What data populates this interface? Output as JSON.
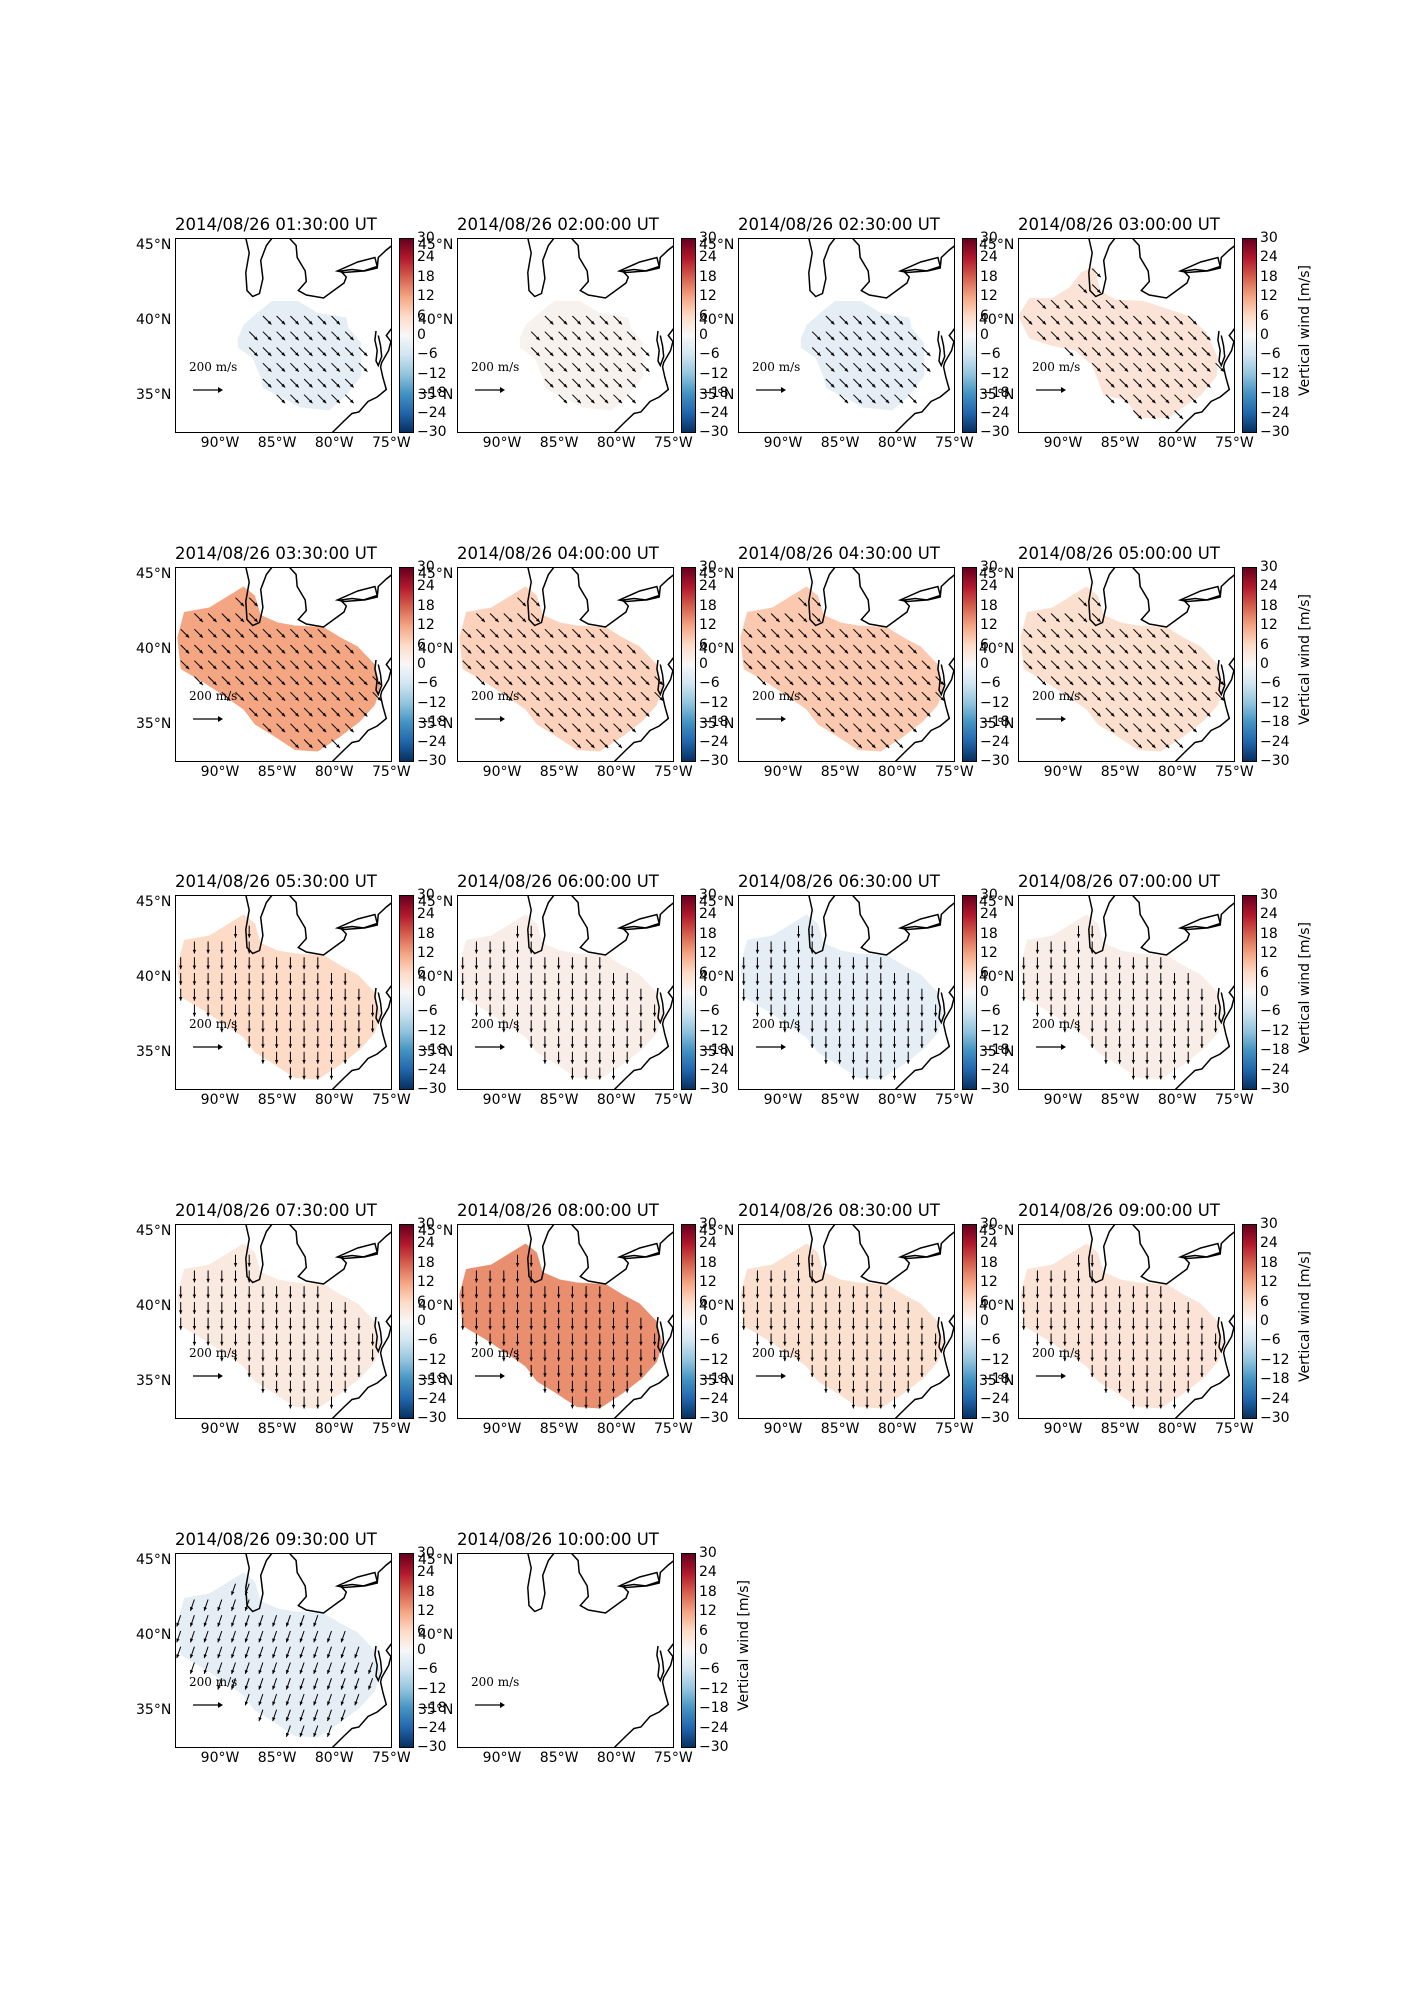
{
  "colorbar": {
    "ticks": [
      "30",
      "24",
      "18",
      "12",
      "6",
      "0",
      "−6",
      "−12",
      "−18",
      "−24",
      "−30"
    ],
    "label": "Vertical wind [m/s]",
    "range": [
      -30,
      30
    ]
  },
  "axes": {
    "lat_labels": [
      "45°N",
      "40°N",
      "35°N"
    ],
    "lon_labels": [
      "90°W",
      "85°W",
      "80°W",
      "75°W"
    ]
  },
  "scale_key": {
    "text": "200 m/s"
  },
  "panels": [
    {
      "title": "2014/08/26 01:30:00 UT",
      "value": -3,
      "wind_dir": "se",
      "region": "small",
      "show_label": false
    },
    {
      "title": "2014/08/26 02:00:00 UT",
      "value": 1,
      "wind_dir": "se",
      "region": "small",
      "show_label": false
    },
    {
      "title": "2014/08/26 02:30:00 UT",
      "value": -3,
      "wind_dir": "se",
      "region": "small",
      "show_label": false
    },
    {
      "title": "2014/08/26 03:00:00 UT",
      "value": 4,
      "wind_dir": "se",
      "region": "medium",
      "show_label": true
    },
    {
      "title": "2014/08/26 03:30:00 UT",
      "value": 12,
      "wind_dir": "se",
      "region": "large",
      "show_label": false
    },
    {
      "title": "2014/08/26 04:00:00 UT",
      "value": 7,
      "wind_dir": "se",
      "region": "large",
      "show_label": false
    },
    {
      "title": "2014/08/26 04:30:00 UT",
      "value": 8,
      "wind_dir": "se",
      "region": "large",
      "show_label": false
    },
    {
      "title": "2014/08/26 05:00:00 UT",
      "value": 5,
      "wind_dir": "se",
      "region": "large",
      "show_label": true
    },
    {
      "title": "2014/08/26 05:30:00 UT",
      "value": 6,
      "wind_dir": "s",
      "region": "large",
      "show_label": false
    },
    {
      "title": "2014/08/26 06:00:00 UT",
      "value": 2,
      "wind_dir": "s",
      "region": "large",
      "show_label": false
    },
    {
      "title": "2014/08/26 06:30:00 UT",
      "value": -3,
      "wind_dir": "s",
      "region": "large",
      "show_label": false
    },
    {
      "title": "2014/08/26 07:00:00 UT",
      "value": 2,
      "wind_dir": "s",
      "region": "large",
      "show_label": true
    },
    {
      "title": "2014/08/26 07:30:00 UT",
      "value": 3,
      "wind_dir": "s",
      "region": "large",
      "show_label": false
    },
    {
      "title": "2014/08/26 08:00:00 UT",
      "value": 14,
      "wind_dir": "s",
      "region": "large",
      "show_label": false
    },
    {
      "title": "2014/08/26 08:30:00 UT",
      "value": 5,
      "wind_dir": "s",
      "region": "large",
      "show_label": false
    },
    {
      "title": "2014/08/26 09:00:00 UT",
      "value": 4,
      "wind_dir": "s",
      "region": "large",
      "show_label": true
    },
    {
      "title": "2014/08/26 09:30:00 UT",
      "value": -3,
      "wind_dir": "sw",
      "region": "large",
      "show_label": false
    },
    {
      "title": "2014/08/26 10:00:00 UT",
      "value": null,
      "wind_dir": "none",
      "region": "none",
      "show_label": true
    }
  ]
}
